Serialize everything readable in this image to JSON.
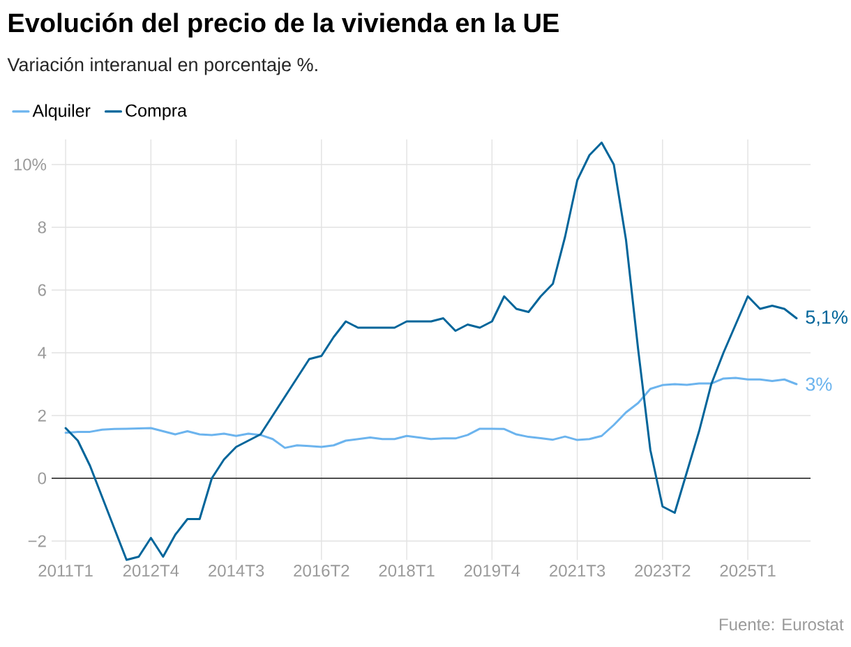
{
  "chart_data": {
    "type": "line",
    "title": "Evolución del precio de la vivienda en la UE",
    "subtitle": "Variación interanual en porcentaje %.",
    "categories": [
      "2011T1",
      null,
      null,
      null,
      null,
      null,
      null,
      "2012T4",
      null,
      null,
      null,
      null,
      null,
      null,
      "2014T3",
      null,
      null,
      null,
      null,
      null,
      null,
      "2016T2",
      null,
      null,
      null,
      null,
      null,
      null,
      "2018T1",
      null,
      null,
      null,
      null,
      null,
      null,
      "2019T4",
      null,
      null,
      null,
      null,
      null,
      null,
      "2021T3",
      null,
      null,
      null,
      null,
      null,
      null,
      "2023T2",
      null,
      null,
      null,
      null,
      null,
      null,
      "2025T1",
      null,
      null,
      null,
      null
    ],
    "series": [
      {
        "name": "Alquiler",
        "color": "#6cb4ee",
        "values": [
          1.45,
          1.48,
          1.48,
          1.55,
          1.57,
          1.58,
          1.59,
          1.6,
          1.5,
          1.4,
          1.5,
          1.4,
          1.38,
          1.42,
          1.35,
          1.42,
          1.38,
          1.25,
          0.97,
          1.05,
          1.03,
          1.0,
          1.05,
          1.2,
          1.25,
          1.3,
          1.25,
          1.25,
          1.35,
          1.3,
          1.25,
          1.27,
          1.27,
          1.38,
          1.58,
          1.58,
          1.57,
          1.4,
          1.32,
          1.28,
          1.23,
          1.33,
          1.22,
          1.25,
          1.35,
          1.7,
          2.1,
          2.4,
          2.85,
          2.97,
          3.0,
          2.98,
          3.02,
          3.02,
          3.18,
          3.2,
          3.15,
          3.15,
          3.1,
          3.15,
          3.0
        ],
        "value_labels": [
          null,
          null,
          null,
          null,
          null,
          null,
          null,
          null,
          null,
          null,
          null,
          null,
          null,
          null,
          null,
          null,
          null,
          null,
          null,
          null,
          null,
          null,
          null,
          null,
          null,
          null,
          null,
          null,
          null,
          null,
          null,
          null,
          null,
          null,
          null,
          null,
          null,
          null,
          null,
          null,
          null,
          null,
          null,
          null,
          null,
          null,
          null,
          null,
          null,
          null,
          null,
          null,
          null,
          null,
          null,
          null,
          null,
          null,
          null,
          null,
          "3%"
        ]
      },
      {
        "name": "Compra",
        "color": "#00659a",
        "values": [
          1.6,
          1.2,
          0.4,
          -0.6,
          -1.6,
          -2.6,
          -2.5,
          -1.9,
          -2.5,
          -1.8,
          -1.3,
          -1.3,
          0.0,
          0.6,
          1.0,
          1.2,
          1.4,
          2.0,
          2.6,
          3.2,
          3.8,
          3.9,
          4.5,
          5.0,
          4.8,
          4.8,
          4.8,
          4.8,
          5.0,
          5.0,
          5.0,
          5.1,
          4.7,
          4.9,
          4.8,
          5.0,
          5.8,
          5.4,
          5.3,
          5.8,
          6.2,
          7.7,
          9.5,
          10.3,
          10.7,
          10.0,
          7.6,
          4.1,
          0.9,
          -0.9,
          -1.1,
          0.2,
          1.5,
          3.0,
          4.0,
          4.9,
          5.8,
          5.4,
          5.5,
          5.4,
          5.1
        ],
        "value_labels": [
          null,
          null,
          null,
          null,
          null,
          null,
          null,
          null,
          null,
          null,
          null,
          null,
          null,
          null,
          null,
          null,
          null,
          null,
          null,
          null,
          null,
          null,
          null,
          null,
          null,
          null,
          null,
          null,
          null,
          null,
          null,
          null,
          null,
          null,
          null,
          null,
          null,
          null,
          null,
          null,
          null,
          null,
          null,
          null,
          null,
          null,
          null,
          null,
          null,
          null,
          null,
          null,
          null,
          null,
          null,
          null,
          null,
          null,
          null,
          null,
          "5,1%"
        ]
      }
    ],
    "ylim": [
      -2.6,
      10.8
    ],
    "yticks": [
      {
        "value": -2,
        "label": "−2"
      },
      0,
      2,
      4,
      6,
      8,
      {
        "value": 10,
        "label": "10%"
      }
    ],
    "grid": true,
    "legend": "top left",
    "ref_lines": [
      {
        "axis": "y",
        "value": 0,
        "color": "#1a1a1a"
      }
    ],
    "annotations": [
      "Fuente: Eurostat"
    ]
  }
}
